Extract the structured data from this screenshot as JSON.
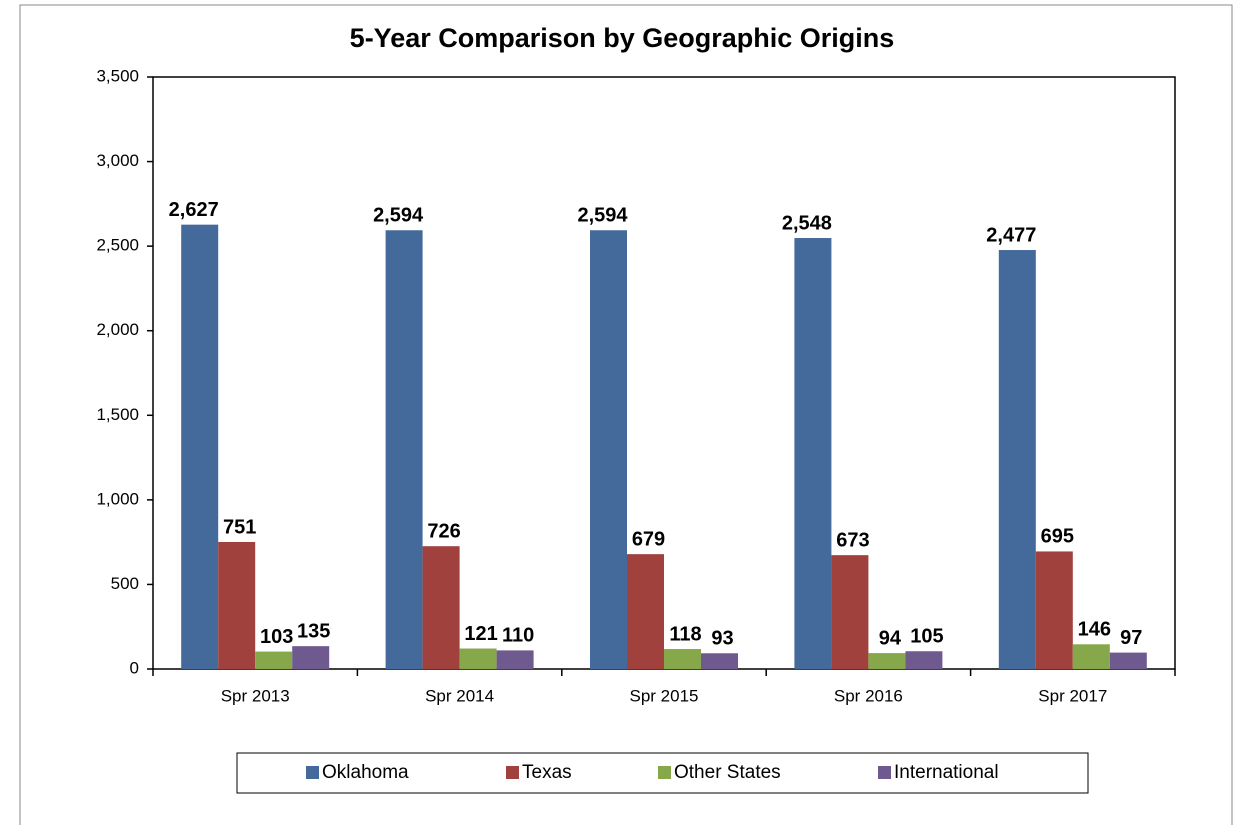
{
  "chart_data": {
    "type": "bar",
    "title": "5-Year Comparison by Geographic Origins",
    "categories": [
      "Spr 2013",
      "Spr 2014",
      "Spr 2015",
      "Spr 2016",
      "Spr 2017"
    ],
    "series": [
      {
        "name": "Oklahoma",
        "color": "#44699b",
        "values": [
          2627,
          2594,
          2594,
          2548,
          2477
        ],
        "value_labels": [
          "2,627",
          "2,594",
          "2,594",
          "2,548",
          "2,477"
        ]
      },
      {
        "name": "Texas",
        "color": "#a0413d",
        "values": [
          751,
          726,
          679,
          673,
          695
        ]
      },
      {
        "name": "Other States",
        "color": "#86a84a",
        "values": [
          103,
          121,
          118,
          94,
          146
        ]
      },
      {
        "name": "International",
        "color": "#6e5a8e",
        "values": [
          135,
          110,
          93,
          105,
          97
        ]
      }
    ],
    "ylim": [
      0,
      3500
    ],
    "yticks": [
      0,
      500,
      {
        "value": 1000,
        "label": "1,000"
      },
      {
        "value": 1500,
        "label": "1,500"
      },
      {
        "value": 2000,
        "label": "2,000"
      },
      {
        "value": 2500,
        "label": "2,500"
      },
      {
        "value": 3000,
        "label": "3,000"
      },
      {
        "value": 3500,
        "label": "3,500"
      }
    ],
    "legend": "bottom"
  }
}
